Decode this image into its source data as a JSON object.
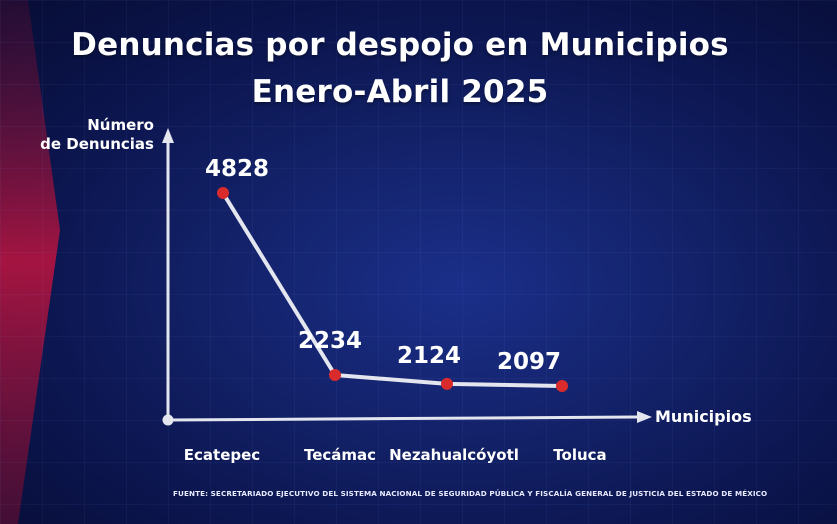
{
  "title_line1": "Denuncias por despojo en Municipios",
  "title_line2": "Enero-Abril 2025",
  "y_axis_label_line1": "Número",
  "y_axis_label_line2": "de Denuncias",
  "x_axis_label": "Municipios",
  "source": "FUENTE: SECRETARIADO EJECUTIVO DEL SISTEMA NACIONAL DE SEGURIDAD PÚBLICA Y FISCALÍA GENERAL DE JUSTICIA DEL ESTADO DE MÉXICO",
  "colors": {
    "line": "#e4e6ef",
    "marker": "#d92b2b",
    "accent_red": "#b3123c"
  },
  "chart_data": {
    "type": "line",
    "title": "Denuncias por despojo en Municipios Enero-Abril 2025",
    "xlabel": "Municipios",
    "ylabel": "Número de Denuncias",
    "categories": [
      "Ecatepec",
      "Tecámac",
      "Nezahualcóyotl",
      "Toluca"
    ],
    "values": [
      4828,
      2234,
      2124,
      2097
    ],
    "data_labels": [
      "4828",
      "2234",
      "2124",
      "2097"
    ],
    "grid": false,
    "legend": "none"
  }
}
